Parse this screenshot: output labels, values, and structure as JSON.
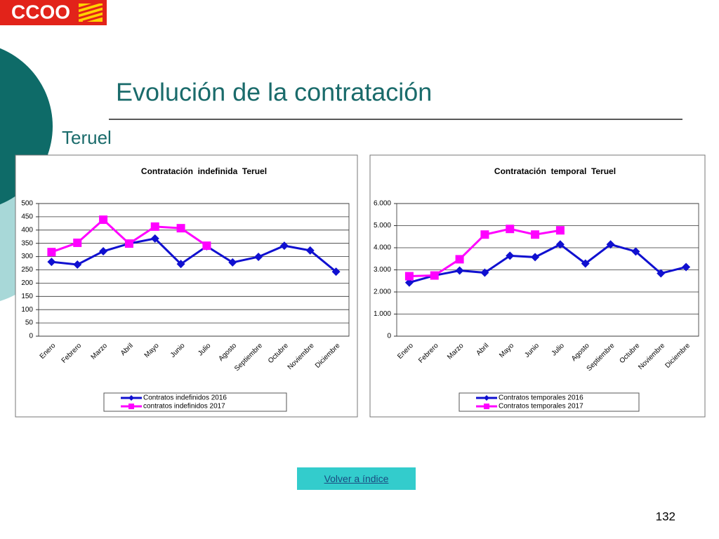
{
  "logo": "CCOO",
  "title": "Evolución de la contratación",
  "subtitle": "Teruel",
  "button": "Volver a índice",
  "page_number": "132",
  "chart_data": [
    {
      "type": "line",
      "title": "Contratación  indefinida  Teruel",
      "categories": [
        "Enero",
        "Febrero",
        "Marzo",
        "Abril",
        "Mayo",
        "Junio",
        "Julio",
        "Agosto",
        "Septiembre",
        "Octubre",
        "Noviembre",
        "Diciembre"
      ],
      "series": [
        {
          "name": "Contratos indefinidos 2016",
          "color": "#1010d0",
          "marker": "diamond",
          "values": [
            280,
            270,
            320,
            349,
            368,
            272,
            339,
            278,
            299,
            341,
            323,
            243
          ]
        },
        {
          "name": "contratos indefinidos 2017",
          "color": "#ff00ff",
          "marker": "square",
          "values": [
            317,
            352,
            439,
            349,
            413,
            407,
            341,
            null,
            null,
            null,
            null,
            null
          ]
        }
      ],
      "ylim": [
        0,
        500
      ],
      "yticks": [
        0,
        50,
        100,
        150,
        200,
        250,
        300,
        350,
        400,
        450,
        500
      ],
      "grid": true
    },
    {
      "type": "line",
      "title": "Contratación  temporal  Teruel",
      "categories": [
        "Enero",
        "Febrero",
        "Marzo",
        "Abril",
        "Mayo",
        "Junio",
        "Julio",
        "Agosto",
        "Septiembre",
        "Octubre",
        "Noviembre",
        "Diciembre"
      ],
      "series": [
        {
          "name": "Contratos temporales 2016",
          "color": "#1010d0",
          "marker": "diamond",
          "values": [
            2426,
            2745,
            2968,
            2872,
            3638,
            3574,
            4149,
            3287,
            4149,
            3830,
            2840,
            3128
          ]
        },
        {
          "name": "Contratos temporales 2017",
          "color": "#ff00ff",
          "marker": "square",
          "values": [
            2713,
            2745,
            3479,
            4596,
            4851,
            4596,
            4787,
            null,
            null,
            null,
            null,
            null
          ]
        }
      ],
      "ylim": [
        0,
        6000
      ],
      "yticks": [
        0,
        {
          "value": 1000,
          "label": "1.000"
        },
        {
          "value": 2000,
          "label": "2.000"
        },
        {
          "value": 3000,
          "label": "3.000"
        },
        {
          "value": 4000,
          "label": "4.000"
        },
        {
          "value": 5000,
          "label": "5.000"
        },
        {
          "value": 6000,
          "label": "6.000"
        }
      ],
      "grid": true
    }
  ]
}
